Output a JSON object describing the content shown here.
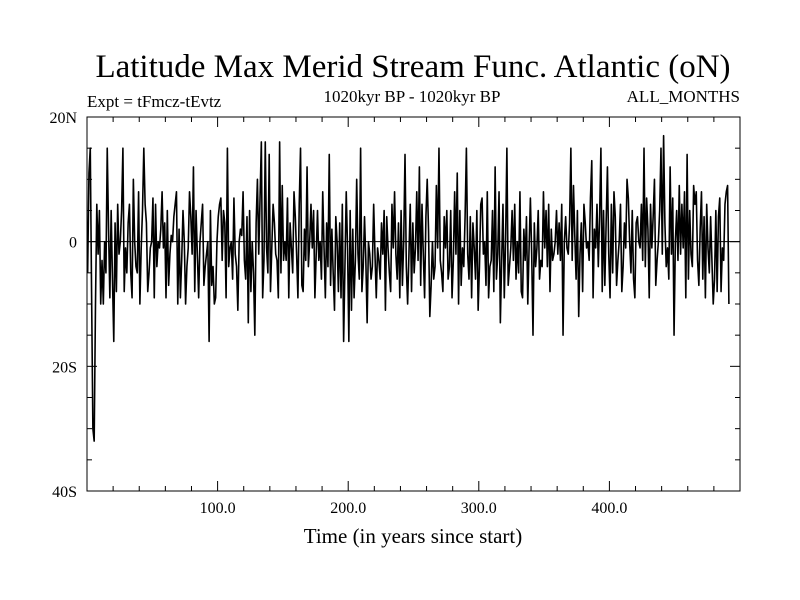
{
  "chart_data": {
    "type": "line",
    "title": "Latitude Max Merid Stream Func. Atlantic (oN)",
    "subtitle_left": "Expt = tFmcz-tEvtz",
    "subtitle_center": "1020kyr BP - 1020kyr BP",
    "subtitle_right": "ALL_MONTHS",
    "xlabel": "Time (in years since start)",
    "ylabel": "",
    "xlim": [
      0,
      500
    ],
    "ylim": [
      -40,
      20
    ],
    "x_ticks": [
      {
        "value": 100,
        "label": "100.0"
      },
      {
        "value": 200,
        "label": "200.0"
      },
      {
        "value": 300,
        "label": "300.0"
      },
      {
        "value": 400,
        "label": "400.0"
      }
    ],
    "y_ticks": [
      {
        "value": 20,
        "label": "20N"
      },
      {
        "value": 0,
        "label": "0"
      },
      {
        "value": -20,
        "label": "20S"
      },
      {
        "value": -40,
        "label": "40S"
      }
    ],
    "reference_line": 0,
    "line_color": "#000000",
    "series": [
      {
        "values": [
          -5,
          11,
          15,
          -8,
          -30,
          -32,
          -10,
          6,
          -2,
          5,
          -10,
          -3,
          -10,
          0,
          -5,
          15,
          2,
          -9,
          5,
          -6,
          -16,
          3,
          -8,
          6,
          -2,
          0,
          5,
          15,
          -8,
          -1,
          -5,
          3,
          6,
          -5,
          -9,
          10,
          0,
          -4,
          -5,
          8,
          -10,
          -1,
          5,
          15,
          6,
          3,
          -8,
          -5,
          -1,
          0,
          7,
          -9,
          6,
          -4,
          0,
          -1,
          2,
          8,
          -1,
          3,
          -9,
          5,
          -7,
          -2,
          1,
          0,
          4,
          6,
          8,
          -10,
          2,
          -9,
          -3,
          5,
          0,
          -10,
          -4,
          -1,
          8,
          4,
          -2,
          12,
          -8,
          5,
          -2,
          -9,
          0,
          3,
          6,
          -7,
          -4,
          -2,
          0,
          -16,
          5,
          -7,
          -4,
          -10,
          -9,
          0,
          4,
          6,
          7,
          -3,
          5,
          3,
          -9,
          15,
          -4,
          -1,
          0,
          -6,
          7,
          -2,
          -4,
          -11,
          0,
          2,
          1,
          8,
          -3,
          -6,
          4,
          -13,
          5,
          -8,
          0,
          -5,
          -15,
          3,
          10,
          -2,
          7,
          16,
          -9,
          -3,
          16,
          -1,
          -5,
          14,
          -8,
          -1,
          6,
          3,
          -2,
          -3,
          -9,
          16,
          -5,
          9,
          -3,
          0,
          -3,
          7,
          -9,
          3,
          -1,
          -5,
          8,
          4,
          -2,
          -9,
          6,
          15,
          -7,
          -8,
          2,
          -3,
          12,
          -4,
          0,
          6,
          -1,
          5,
          -9,
          -2,
          5,
          -3,
          0,
          -6,
          8,
          -1,
          -9,
          3,
          -4,
          14,
          -7,
          2,
          -5,
          -11,
          4,
          0,
          -8,
          3,
          -9,
          6,
          -16,
          -4,
          8,
          -1,
          -16,
          5,
          -11,
          2,
          -9,
          -3,
          10,
          -2,
          -6,
          15,
          -8,
          -4,
          4,
          -3,
          -13,
          0,
          -2,
          -6,
          -4,
          6,
          -2,
          -9,
          -1,
          -3,
          -6,
          3,
          -2,
          5,
          -11,
          4,
          -1,
          -5,
          -8,
          6,
          -1,
          8,
          -2,
          -6,
          3,
          -9,
          5,
          -7,
          0,
          14,
          -4,
          -10,
          -2,
          6,
          -8,
          3,
          -5,
          -1,
          8,
          -3,
          12,
          -7,
          6,
          -2,
          -9,
          4,
          10,
          2,
          -12,
          -7,
          0,
          -6,
          -4,
          9,
          -1,
          15,
          -3,
          -5,
          -8,
          4,
          -1,
          5,
          -6,
          -4,
          5,
          -9,
          -3,
          8,
          -2,
          11,
          -10,
          5,
          -7,
          -1,
          -4,
          4,
          15,
          -2,
          -6,
          4,
          -9,
          3,
          -1,
          -6,
          5,
          -11,
          -4,
          6,
          7,
          -2,
          0,
          -7,
          8,
          -9,
          -4,
          -3,
          5,
          -8,
          12,
          -6,
          -2,
          8,
          -13,
          -3,
          6,
          -9,
          0,
          15,
          -7,
          -4,
          -1,
          5,
          -3,
          6,
          -6,
          0,
          -5,
          8,
          -8,
          -9,
          2,
          -3,
          4,
          -10,
          -1,
          7,
          -2,
          -15,
          3,
          -4,
          -1,
          5,
          -6,
          -3,
          -4,
          8,
          -1,
          5,
          -4,
          6,
          -8,
          2,
          -3,
          -2,
          0,
          5,
          -2,
          3,
          -3,
          6,
          -15,
          0,
          4,
          -1,
          -2,
          3,
          15,
          -3,
          9,
          1,
          -6,
          5,
          -12,
          -2,
          3,
          -8,
          6,
          3,
          -1,
          0,
          -3,
          7,
          13,
          -9,
          2,
          -1,
          6,
          -4,
          4,
          15,
          -8,
          5,
          -7,
          3,
          12,
          -2,
          -9,
          6,
          -5,
          8,
          4,
          -7,
          -3,
          0,
          6,
          -8,
          -4,
          3,
          -1,
          10,
          7,
          0,
          -5,
          5,
          -6,
          -9,
          3,
          4,
          0,
          -1,
          6,
          -3,
          15,
          -4,
          7,
          2,
          -9,
          6,
          -1,
          4,
          10,
          -7,
          -3,
          0,
          5,
          15,
          -2,
          17,
          3,
          -4,
          -1,
          -6,
          12,
          -2,
          7,
          -15,
          0,
          5,
          -3,
          9,
          -2,
          6,
          -1,
          8,
          -9,
          14,
          -6,
          5,
          -2,
          -4,
          9,
          6,
          8,
          -3,
          -7,
          2,
          8,
          -6,
          4,
          -9,
          6,
          -1,
          -5,
          4,
          -3,
          -10,
          -6,
          5,
          -8,
          4,
          7,
          -8,
          -1,
          -3,
          6,
          8,
          9,
          -10
        ],
        "x_start": 0.5,
        "x_step": 1
      }
    ]
  }
}
